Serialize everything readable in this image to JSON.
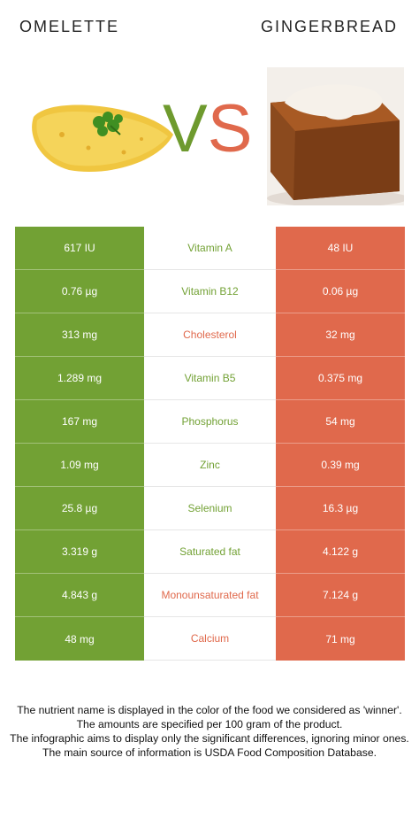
{
  "header": {
    "left_food": "OMELETTE",
    "right_food": "GINGERBREAD",
    "vs_v": "V",
    "vs_s": "S"
  },
  "colors": {
    "winner_left": "#72a134",
    "winner_right": "#e0694c"
  },
  "images": {
    "left": "omelette-image",
    "right": "gingerbread-image"
  },
  "rows": [
    {
      "left": "617 IU",
      "nutrient": "Vitamin A",
      "right": "48 IU",
      "winner": "left"
    },
    {
      "left": "0.76 µg",
      "nutrient": "Vitamin B12",
      "right": "0.06 µg",
      "winner": "left"
    },
    {
      "left": "313 mg",
      "nutrient": "Cholesterol",
      "right": "32 mg",
      "winner": "right"
    },
    {
      "left": "1.289 mg",
      "nutrient": "Vitamin B5",
      "right": "0.375 mg",
      "winner": "left"
    },
    {
      "left": "167 mg",
      "nutrient": "Phosphorus",
      "right": "54 mg",
      "winner": "left"
    },
    {
      "left": "1.09 mg",
      "nutrient": "Zinc",
      "right": "0.39 mg",
      "winner": "left"
    },
    {
      "left": "25.8 µg",
      "nutrient": "Selenium",
      "right": "16.3 µg",
      "winner": "left"
    },
    {
      "left": "3.319 g",
      "nutrient": "Saturated fat",
      "right": "4.122 g",
      "winner": "left"
    },
    {
      "left": "4.843 g",
      "nutrient": "Monounsaturated fat",
      "right": "7.124 g",
      "winner": "right"
    },
    {
      "left": "48 mg",
      "nutrient": "Calcium",
      "right": "71 mg",
      "winner": "right"
    }
  ],
  "footer": [
    "The nutrient name is displayed in the color of the food we considered as 'winner'.",
    "The amounts are specified per 100 gram of the product.",
    "The infographic aims to display only the significant differences, ignoring minor ones.",
    "The main source of information is USDA Food Composition Database."
  ]
}
